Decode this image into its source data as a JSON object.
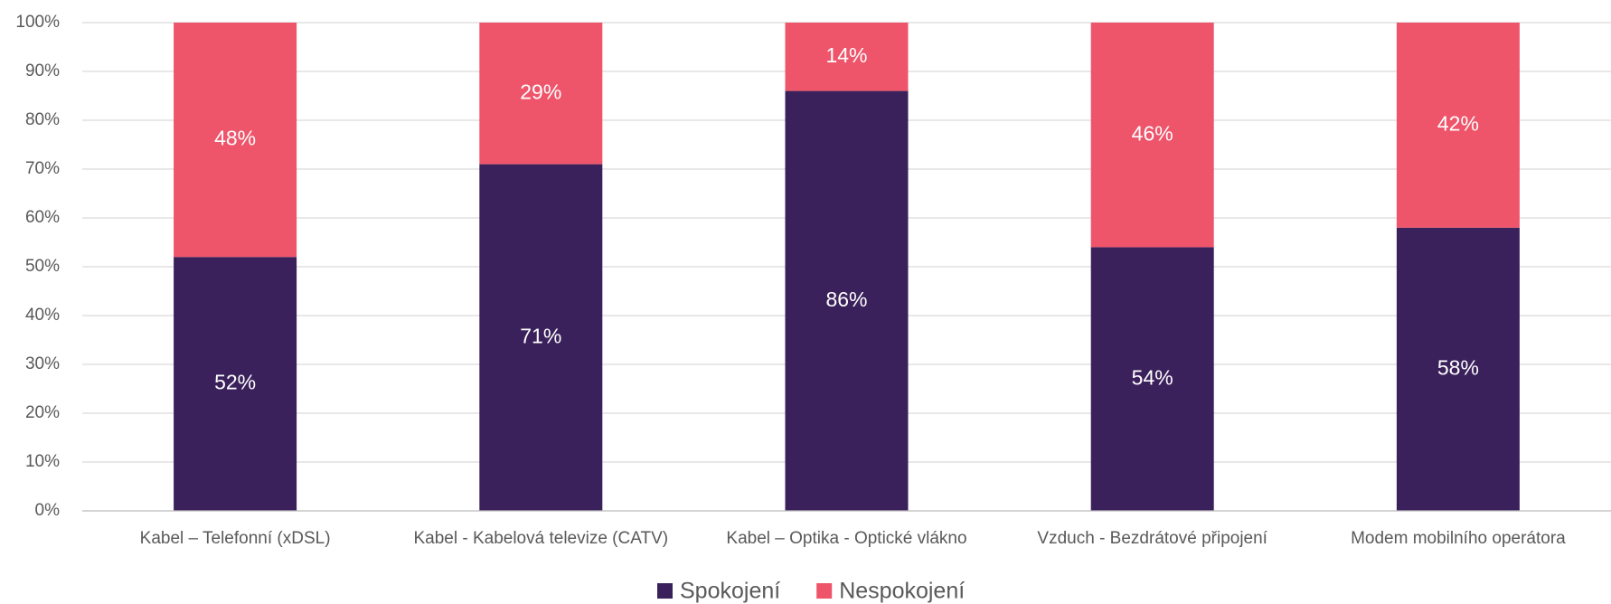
{
  "chart_data": {
    "type": "stacked_bar",
    "categories": [
      "Kabel – Telefonní (xDSL)",
      "Kabel - Kabelová televize (CATV)",
      "Kabel – Optika - Optické vlákno",
      "Vzduch - Bezdrátové připojení",
      "Modem mobilního operátora"
    ],
    "series": [
      {
        "name": "Spokojení",
        "color": "#3b215b",
        "values": [
          52,
          71,
          86,
          54,
          58
        ],
        "value_labels": [
          "52%",
          "71%",
          "86%",
          "54%",
          "58%"
        ]
      },
      {
        "name": "Nespokojení",
        "color": "#ee546a",
        "values": [
          48,
          29,
          14,
          46,
          42
        ],
        "value_labels": [
          "48%",
          "29%",
          "14%",
          "46%",
          "42%"
        ]
      }
    ],
    "ylim": [
      0,
      100
    ],
    "yticks": [
      {
        "value": 0,
        "label": "0%"
      },
      {
        "value": 10,
        "label": "10%"
      },
      {
        "value": 20,
        "label": "20%"
      },
      {
        "value": 30,
        "label": "30%"
      },
      {
        "value": 40,
        "label": "40%"
      },
      {
        "value": 50,
        "label": "50%"
      },
      {
        "value": 60,
        "label": "60%"
      },
      {
        "value": 70,
        "label": "70%"
      },
      {
        "value": 80,
        "label": "80%"
      },
      {
        "value": 90,
        "label": "90%"
      },
      {
        "value": 100,
        "label": "100%"
      }
    ],
    "grid": true,
    "legend": "bottom"
  }
}
